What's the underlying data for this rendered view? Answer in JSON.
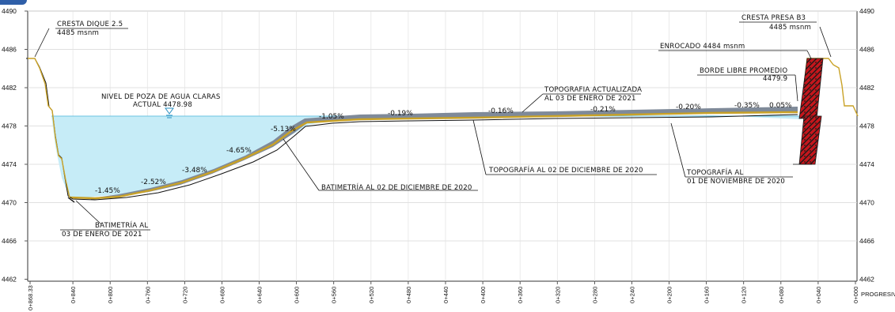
{
  "axis": {
    "elevation_ticks": [
      "4490",
      "4486",
      "4482",
      "4478",
      "4474",
      "4470",
      "4466",
      "4462"
    ],
    "chainage_ticks": [
      "0+868.33",
      "0+840",
      "0+800",
      "0+760",
      "0+720",
      "0+680",
      "0+640",
      "0+600",
      "0+560",
      "0+520",
      "0+480",
      "0+440",
      "0+400",
      "0+360",
      "0+320",
      "0+280",
      "0+240",
      "0+200",
      "0+160",
      "0+120",
      "0+080",
      "0+040",
      "0+000"
    ],
    "chainage_label": "PROGRESIVA"
  },
  "labels": {
    "cresta_dique_title": "CRESTA DIQUE 2.5",
    "cresta_dique_elev": "4485 msnm",
    "cresta_presa_title": "CRESTA PRESA B3",
    "cresta_presa_elev": "4485 msnm",
    "enrocado": "ENROCADO 4484 msnm",
    "borde_libre_title": "BORDE LIBRE PROMEDIO",
    "borde_libre_value": "4479.9",
    "nivel_poza_line1": "NIVEL DE POZA DE AGUA CLARAS",
    "nivel_poza_line2": "ACTUAL 4478.98",
    "topo_actualizada_line1": "TOPOGRAFIA ACTUALIZADA",
    "topo_actualizada_line2": "AL 03 DE ENERO DE 2021",
    "topo_dic": "TOPOGRAFÍA AL 02 DE DICIEMBRE DE 2020",
    "topo_nov_line1": "TOPOGRAFÍA AL",
    "topo_nov_line2": "01 DE NOVIEMBRE DE 2020",
    "bati_dic": "BATIMETRÍA AL 02 DE DICIEMBRE DE 2020",
    "bati_ene_line1": "BATIMETRÍA AL",
    "bati_ene_line2": "03 DE ENERO DE 2021"
  },
  "slopes": [
    "-1.45%",
    "-2.52%",
    "-3.48%",
    "-4.65%",
    "-5.13%",
    "-1.05%",
    "-0.19%",
    "-0.16%",
    "-0.21%",
    "-0.20%",
    "-0.35%",
    "0.05%"
  ],
  "colors": {
    "water": "#c6ecf7",
    "water_line": "#6cc3e0",
    "sediment_fill": "#7f8a99",
    "terrain_gold": "#c9a227",
    "dark_line": "#111111",
    "grid": "#d6d6d6",
    "rockfill": "#c4161c"
  }
}
